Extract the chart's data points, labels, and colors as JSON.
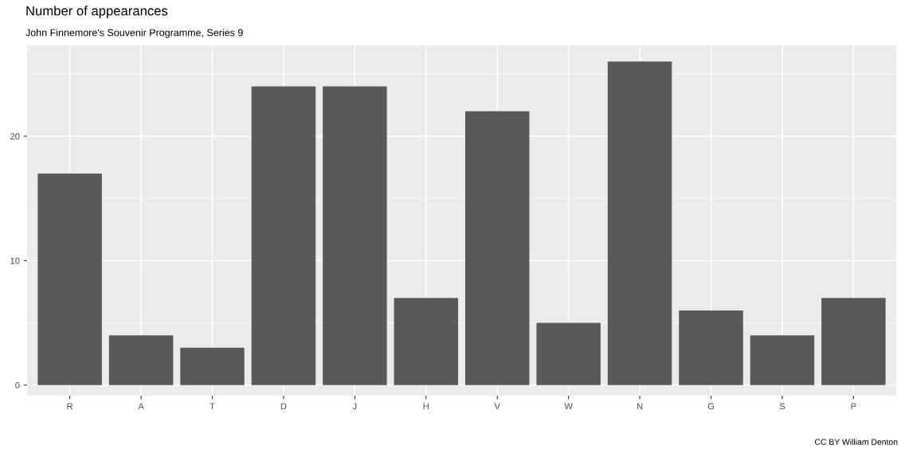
{
  "chart_data": {
    "type": "bar",
    "title": "Number of appearances",
    "subtitle": "John Finnemore's Souvenir Programme, Series 9",
    "categories": [
      "R",
      "A",
      "T",
      "D",
      "J",
      "H",
      "V",
      "W",
      "N",
      "G",
      "S",
      "P"
    ],
    "values": [
      17,
      4,
      3,
      24,
      24,
      7,
      22,
      5,
      26,
      6,
      4,
      7
    ],
    "color": "#595959",
    "ylim": [
      -0.85,
      27.3
    ],
    "yticks": [
      0,
      {
        "value": 5,
        "label": null
      },
      10,
      {
        "value": 15,
        "label": null
      },
      20,
      {
        "value": 25,
        "label": null
      }
    ],
    "grid": true,
    "legend": false,
    "annotations": [
      "CC BY William Denton"
    ]
  }
}
